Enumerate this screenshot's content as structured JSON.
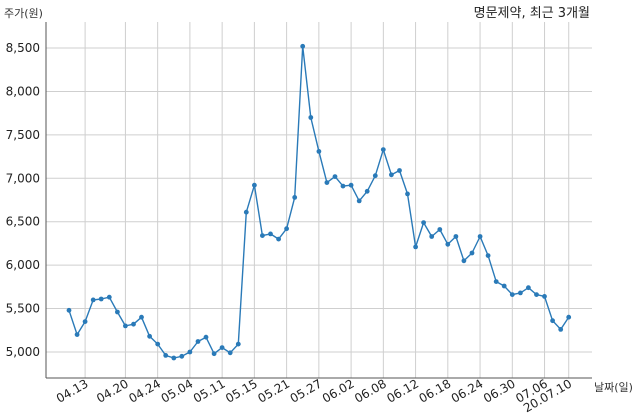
{
  "chart_data": {
    "type": "line",
    "title": "명문제약, 최근 3개월",
    "ylabel": "주가(원)",
    "xlabel": "날짜(일)",
    "ylim": [
      4700,
      8800
    ],
    "yticks": [
      5000,
      5500,
      6000,
      6500,
      7000,
      7500,
      8000,
      8500
    ],
    "ytick_labels": [
      "5,000",
      "5,500",
      "6,000",
      "6,500",
      "7,000",
      "7,500",
      "8,000",
      "8,500"
    ],
    "xtick_labels": [
      "04.13",
      "04.20",
      "04.24",
      "05.04",
      "05.11",
      "05.15",
      "05.21",
      "05.27",
      "06.02",
      "06.08",
      "06.12",
      "06.18",
      "06.24",
      "06.30",
      "07.06",
      "20.07.10"
    ],
    "xtick_index": [
      2,
      7,
      11,
      15,
      19,
      23,
      27,
      31,
      35,
      39,
      43,
      47,
      51,
      55,
      59,
      62
    ],
    "grid": true,
    "line_color": "#2a7ab8",
    "series": [
      {
        "values": [
          5480,
          5200,
          5350,
          5600,
          5610,
          5630,
          5460,
          5300,
          5320,
          5400,
          5180,
          5090,
          4960,
          4930,
          4950,
          5000,
          5120,
          5170,
          4980,
          5050,
          4990,
          5090,
          6610,
          6920,
          6340,
          6360,
          6300,
          6420,
          6780,
          8520,
          7700,
          7310,
          6950,
          7020,
          6910,
          6920,
          6740,
          6850,
          7030,
          7330,
          7040,
          7090,
          6820,
          6210,
          6490,
          6330,
          6410,
          6240,
          6330,
          6050,
          6140,
          6330,
          6110,
          5810,
          5760,
          5660,
          5680,
          5740,
          5660,
          5640,
          5360,
          5260,
          5400
        ]
      }
    ]
  }
}
